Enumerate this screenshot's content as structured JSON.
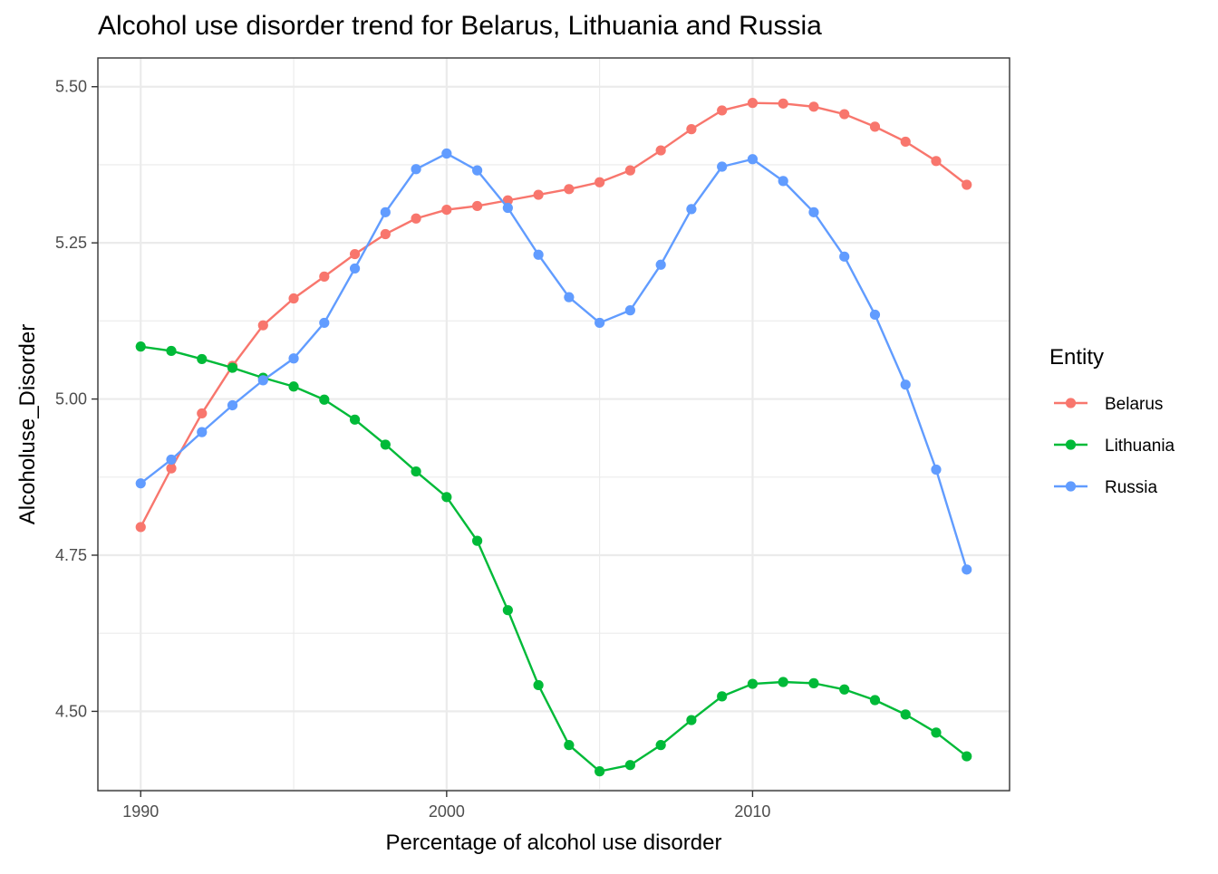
{
  "chart_data": {
    "type": "line",
    "title": "Alcohol use disorder trend for Belarus, Lithuania and Russia",
    "xlabel": "Percentage of alcohol use disorder",
    "ylabel": "Alcoholuse_Disorder",
    "xlim": [
      1988.6,
      2018.4
    ],
    "ylim": [
      4.373,
      5.546
    ],
    "x_ticks": [
      1990,
      2000,
      2010
    ],
    "x_tick_labels": [
      "1990",
      "2000",
      "2010"
    ],
    "y_ticks": [
      4.5,
      4.75,
      5.0,
      5.25,
      5.5
    ],
    "y_tick_labels": [
      "4.50",
      "4.75",
      "5.00",
      "5.25",
      "5.50"
    ],
    "grid": true,
    "legend": {
      "title": "Entity",
      "position": "right"
    },
    "x": [
      1990,
      1991,
      1992,
      1993,
      1994,
      1995,
      1996,
      1997,
      1998,
      1999,
      2000,
      2001,
      2002,
      2003,
      2004,
      2005,
      2006,
      2007,
      2008,
      2009,
      2010,
      2011,
      2012,
      2013,
      2014,
      2015,
      2016,
      2017
    ],
    "series": [
      {
        "name": "Belarus",
        "color": "#F8766D",
        "values": [
          4.795,
          4.889,
          4.977,
          5.053,
          5.118,
          5.161,
          5.196,
          5.232,
          5.264,
          5.289,
          5.303,
          5.309,
          5.318,
          5.327,
          5.336,
          5.347,
          5.366,
          5.398,
          5.432,
          5.462,
          5.474,
          5.473,
          5.468,
          5.456,
          5.436,
          5.412,
          5.381,
          5.343
        ]
      },
      {
        "name": "Lithuania",
        "color": "#00BA38",
        "values": [
          5.084,
          5.077,
          5.064,
          5.05,
          5.034,
          5.02,
          4.999,
          4.967,
          4.927,
          4.884,
          4.843,
          4.773,
          4.662,
          4.542,
          4.446,
          4.404,
          4.414,
          4.446,
          4.486,
          4.524,
          4.544,
          4.547,
          4.545,
          4.535,
          4.518,
          4.495,
          4.466,
          4.428
        ]
      },
      {
        "name": "Russia",
        "color": "#619CFF",
        "values": [
          4.865,
          4.903,
          4.947,
          4.99,
          5.03,
          5.065,
          5.122,
          5.209,
          5.299,
          5.368,
          5.393,
          5.366,
          5.306,
          5.231,
          5.163,
          5.122,
          5.142,
          5.215,
          5.304,
          5.372,
          5.384,
          5.349,
          5.299,
          5.228,
          5.135,
          5.023,
          4.887,
          4.727
        ]
      }
    ]
  }
}
